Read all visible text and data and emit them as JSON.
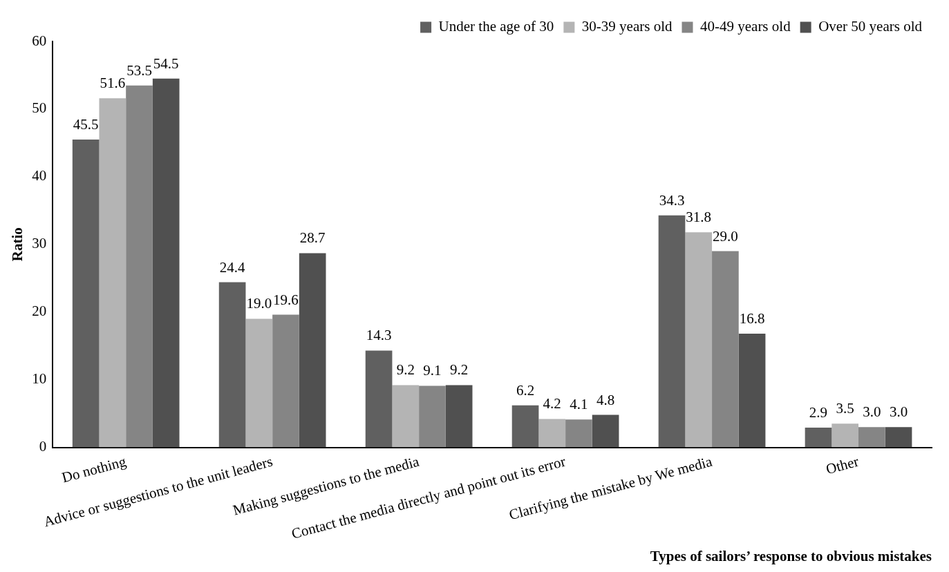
{
  "chart_data": {
    "type": "bar",
    "xlabel": "Types of sailors’ response to obvious mistakes",
    "ylabel": "Ratio",
    "categories": [
      "Do nothing",
      "Advice or suggestions to the unit leaders",
      "Making suggestions to the media",
      "Contact the media directly and point out its error",
      "Clarifying the mistake by We media",
      "Other"
    ],
    "series": [
      {
        "name": "Under the age of 30",
        "color": "#606060",
        "values": [
          45.5,
          24.4,
          14.3,
          6.2,
          34.3,
          2.9
        ],
        "value_labels": [
          "45.5",
          "24.4",
          "14.3",
          "6.2",
          "34.3",
          "2.9"
        ]
      },
      {
        "name": "30-39 years old",
        "color": "#b4b4b4",
        "values": [
          51.6,
          19.0,
          9.2,
          4.2,
          31.8,
          3.5
        ],
        "value_labels": [
          "51.6",
          "19.0",
          "9.2",
          "4.2",
          "31.8",
          "3.5"
        ]
      },
      {
        "name": "40-49 years old",
        "color": "#858585",
        "values": [
          53.5,
          19.6,
          9.1,
          4.1,
          29.0,
          3.0
        ],
        "value_labels": [
          "53.5",
          "19.6",
          "9.1",
          "4.1",
          "29.0",
          "3.0"
        ]
      },
      {
        "name": "Over 50 years old",
        "color": "#505050",
        "values": [
          54.5,
          28.7,
          9.2,
          4.8,
          16.8,
          3.0
        ],
        "value_labels": [
          "54.5",
          "28.7",
          "9.2",
          "4.8",
          "16.8",
          "3.0"
        ]
      }
    ],
    "ylim": [
      0,
      60
    ],
    "yticks": [
      0,
      10,
      20,
      30,
      40,
      50,
      60
    ],
    "grid": false,
    "legend": "top right"
  }
}
